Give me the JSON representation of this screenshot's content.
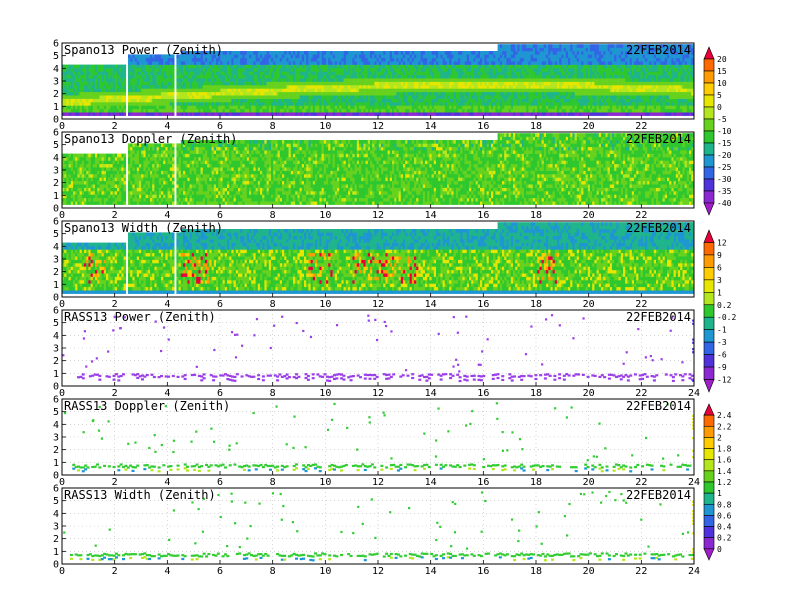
{
  "chart_data": [
    {
      "type": "heatmap",
      "title": "Spano13 Power (Zenith)",
      "date": "22FEB2014",
      "x_ticks": [
        "0",
        "2",
        "4",
        "6",
        "8",
        "10",
        "12",
        "14",
        "16",
        "18",
        "20",
        "22"
      ],
      "y_ticks": [
        "0",
        "1",
        "2",
        "3",
        "4",
        "5",
        "6"
      ],
      "xlim": [
        0,
        24
      ],
      "ylim": [
        0,
        6
      ],
      "field": "power"
    },
    {
      "type": "heatmap",
      "title": "Spano13 Doppler (Zenith)",
      "date": "22FEB2014",
      "x_ticks": [
        "0",
        "2",
        "4",
        "6",
        "8",
        "10",
        "12",
        "14",
        "16",
        "18",
        "20",
        "22"
      ],
      "y_ticks": [
        "0",
        "1",
        "2",
        "3",
        "4",
        "5",
        "6"
      ],
      "xlim": [
        0,
        24
      ],
      "ylim": [
        0,
        6
      ],
      "field": "doppler"
    },
    {
      "type": "heatmap",
      "title": "Spano13 Width (Zenith)",
      "date": "22FEB2014",
      "x_ticks": [
        "0",
        "2",
        "4",
        "6",
        "8",
        "10",
        "12",
        "14",
        "16",
        "18",
        "20",
        "22"
      ],
      "y_ticks": [
        "0",
        "1",
        "2",
        "3",
        "4",
        "5",
        "6"
      ],
      "xlim": [
        0,
        24
      ],
      "ylim": [
        0,
        6
      ],
      "field": "width"
    },
    {
      "type": "scatter",
      "title": "RASS13 Power (Zenith)",
      "date": "22FEB2014",
      "x_ticks": [
        "0",
        "2",
        "4",
        "6",
        "8",
        "10",
        "12",
        "14",
        "16",
        "18",
        "20",
        "22",
        "24"
      ],
      "y_ticks": [
        "0",
        "1",
        "2",
        "3",
        "4",
        "5",
        "6"
      ],
      "xlim": [
        0,
        24
      ],
      "ylim": [
        0,
        6
      ],
      "grid": true,
      "band_height": 0.9,
      "color": "#9b3fe8"
    },
    {
      "type": "scatter",
      "title": "RASS13 Doppler (Zenith)",
      "date": "22FEB2014",
      "x_ticks": [
        "0",
        "2",
        "4",
        "6",
        "8",
        "10",
        "12",
        "14",
        "16",
        "18",
        "20",
        "22",
        "24"
      ],
      "y_ticks": [
        "0",
        "1",
        "2",
        "3",
        "4",
        "5",
        "6"
      ],
      "xlim": [
        0,
        24
      ],
      "ylim": [
        0,
        6
      ],
      "grid": true,
      "band_height": 0.8,
      "color": "#33cc33"
    },
    {
      "type": "scatter",
      "title": "RASS13 Width (Zenith)",
      "date": "22FEB2014",
      "x_ticks": [
        "0",
        "2",
        "4",
        "6",
        "8",
        "10",
        "12",
        "14",
        "16",
        "18",
        "20",
        "22",
        "24"
      ],
      "y_ticks": [
        "0",
        "1",
        "2",
        "3",
        "4",
        "5",
        "6"
      ],
      "xlim": [
        0,
        24
      ],
      "ylim": [
        0,
        6
      ],
      "grid": true,
      "band_height": 0.8,
      "color": "#33cc33"
    }
  ],
  "colorbars": [
    {
      "labels": [
        "20",
        "15",
        "10",
        "5",
        "0",
        "-5",
        "-10",
        "-15",
        "-20",
        "-25",
        "-30",
        "-35",
        "-40"
      ],
      "colors": [
        "#e8003a",
        "#ff6a00",
        "#ff9a00",
        "#ffcc00",
        "#e6e600",
        "#b4e61e",
        "#66d21e",
        "#2ec82e",
        "#1eb48c",
        "#1e96d2",
        "#3264e6",
        "#5032dc",
        "#8c28d2",
        "#a01ec8"
      ]
    },
    {
      "labels": [
        "12",
        "9",
        "6",
        "3",
        "1",
        "0.2",
        "-0.2",
        "-1",
        "-3",
        "-6",
        "-9",
        "-12"
      ],
      "colors": [
        "#e8003a",
        "#ff6a00",
        "#ff9a00",
        "#ffcc00",
        "#e6e600",
        "#b4e61e",
        "#2ec82e",
        "#1eb48c",
        "#1e96d2",
        "#3264e6",
        "#5032dc",
        "#8c28d2",
        "#a01ec8"
      ]
    },
    {
      "labels": [
        "2.4",
        "2.2",
        "2",
        "1.8",
        "1.6",
        "1.4",
        "1.2",
        "1",
        "0.8",
        "0.6",
        "0.4",
        "0.2",
        "0"
      ],
      "colors": [
        "#e8003a",
        "#ff6a00",
        "#ff9a00",
        "#ffcc00",
        "#e6e600",
        "#b4e61e",
        "#66d21e",
        "#2ec82e",
        "#1eb48c",
        "#1e96d2",
        "#3264e6",
        "#5032dc",
        "#8c28d2",
        "#a01ec8"
      ]
    }
  ]
}
